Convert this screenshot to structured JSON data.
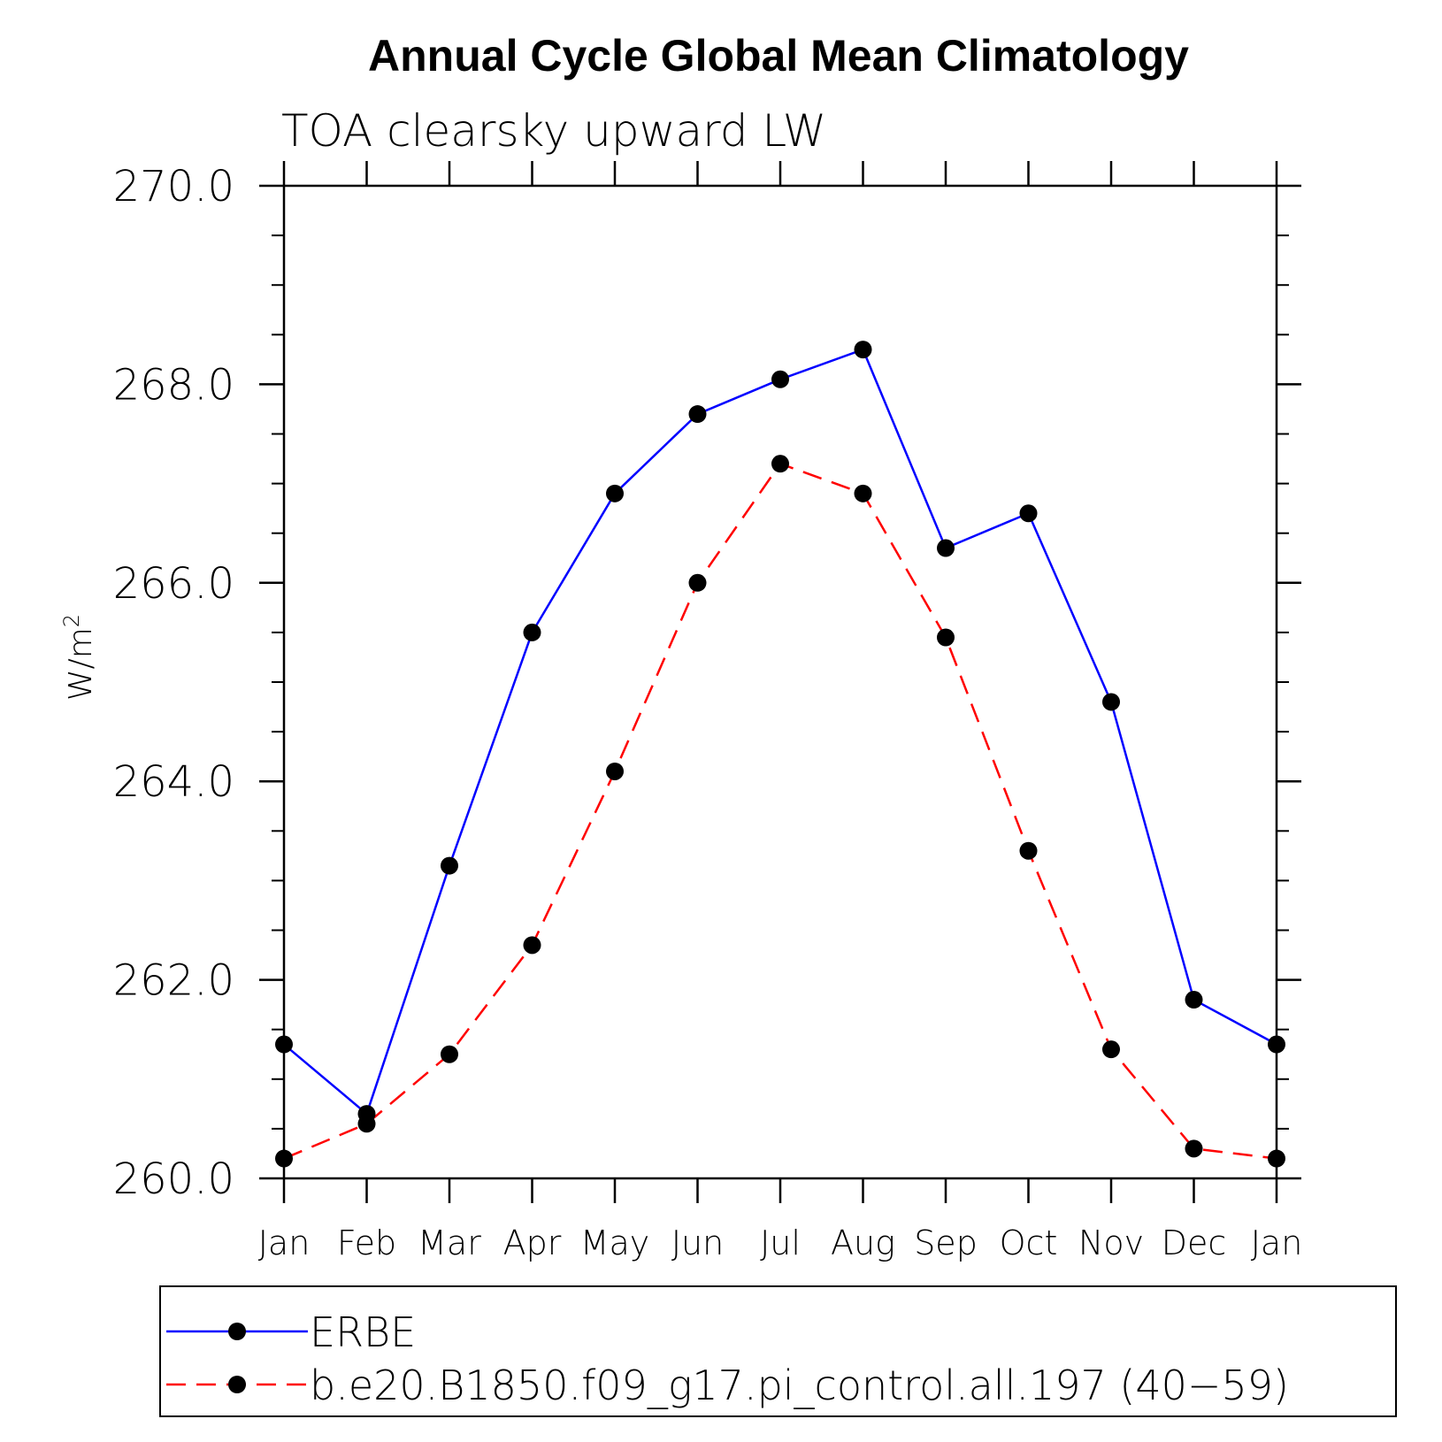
{
  "chart_data": {
    "type": "line",
    "title": "Annual Cycle Global Mean Climatology",
    "subtitle": "TOA clearsky upward LW",
    "ylabel": "W/m",
    "ylabel_superscript": "2",
    "xlabel": "",
    "categories": [
      "Jan",
      "Feb",
      "Mar",
      "Apr",
      "May",
      "Jun",
      "Jul",
      "Aug",
      "Sep",
      "Oct",
      "Nov",
      "Dec",
      "Jan"
    ],
    "ylim": [
      260.0,
      270.0
    ],
    "yticks": [
      "260.0",
      "262.0",
      "264.0",
      "266.0",
      "268.0",
      "270.0"
    ],
    "grid": false,
    "legend_position": "bottom",
    "series": [
      {
        "name": "ERBE",
        "color": "#0000ff",
        "dash": "solid",
        "marker": "filled-circle",
        "values": [
          261.35,
          260.65,
          263.15,
          265.5,
          266.9,
          267.7,
          268.05,
          268.35,
          266.35,
          266.7,
          264.8,
          261.8,
          261.35
        ]
      },
      {
        "name": "b.e20.B1850.f09_g17.pi_control.all.197 (40−59)",
        "color": "#ff0000",
        "dash": "dashed",
        "marker": "filled-circle",
        "values": [
          260.2,
          260.55,
          261.25,
          262.35,
          264.1,
          266.0,
          267.2,
          266.9,
          265.45,
          263.3,
          261.3,
          260.3,
          260.2
        ]
      }
    ]
  }
}
